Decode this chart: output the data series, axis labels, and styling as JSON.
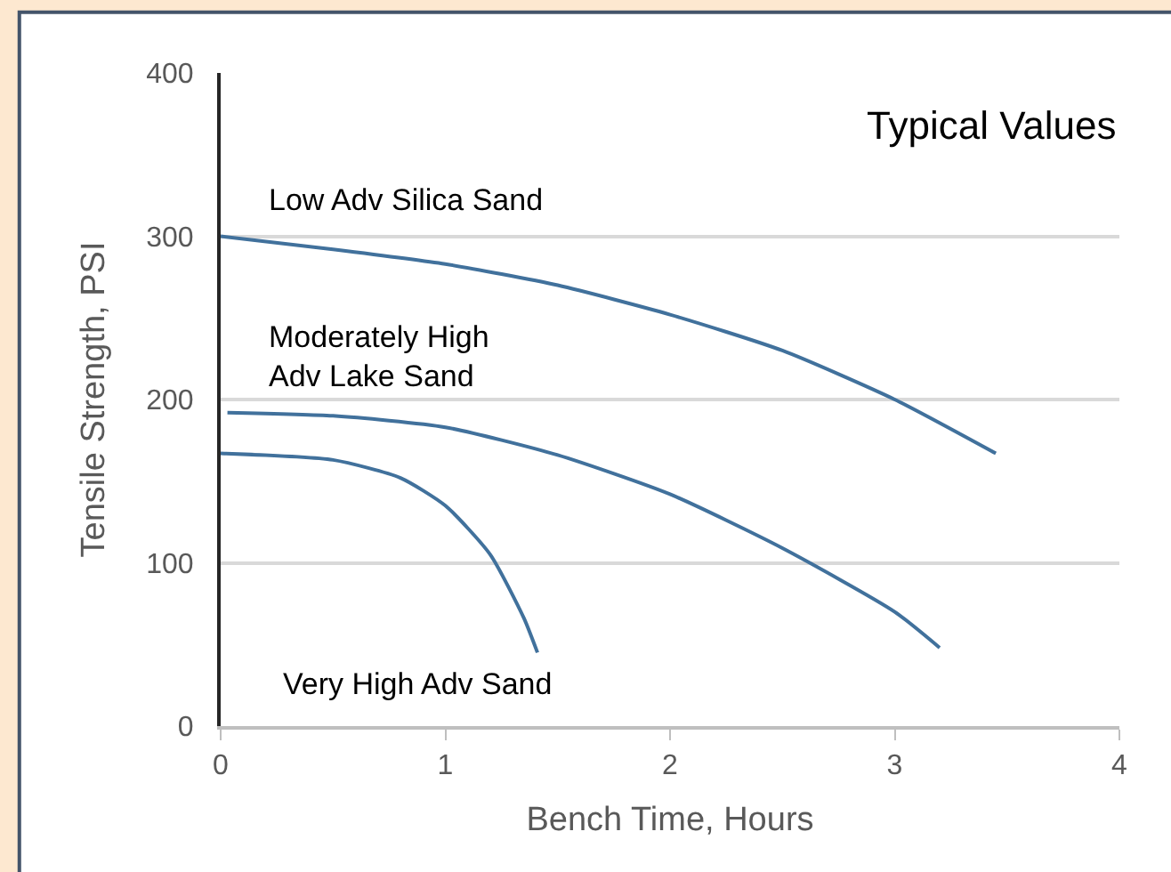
{
  "chart_data": {
    "type": "line",
    "title": "Typical Values",
    "xlabel": "Bench Time, Hours",
    "ylabel": "Tensile Strength, PSI",
    "series": [
      {
        "name": "Low Adv Silica Sand",
        "color": "#41719c",
        "x": [
          0,
          0.5,
          1,
          1.5,
          2,
          2.5,
          3,
          3.45
        ],
        "values": [
          300,
          292,
          283,
          270,
          252,
          230,
          200,
          167
        ]
      },
      {
        "name": "Moderately High\nAdv Lake Sand",
        "color": "#41719c",
        "x": [
          0.03,
          0.5,
          1,
          1.5,
          2,
          2.5,
          3,
          3.2
        ],
        "values": [
          192,
          190,
          183,
          166,
          142,
          109,
          70,
          48
        ]
      },
      {
        "name": "Very High Adv Sand",
        "color": "#41719c",
        "x": [
          0,
          0.5,
          0.8,
          1,
          1.2,
          1.35,
          1.41
        ],
        "values": [
          167,
          163,
          152,
          135,
          105,
          66,
          45
        ]
      }
    ],
    "xlim": [
      0,
      4
    ],
    "xticks": [
      0,
      1,
      2,
      3,
      4
    ],
    "ylim": [
      0,
      400
    ],
    "yticks": [
      0,
      100,
      200,
      300,
      400
    ],
    "grid": "y",
    "legend": false,
    "marker": "none",
    "line_style": "solid"
  }
}
